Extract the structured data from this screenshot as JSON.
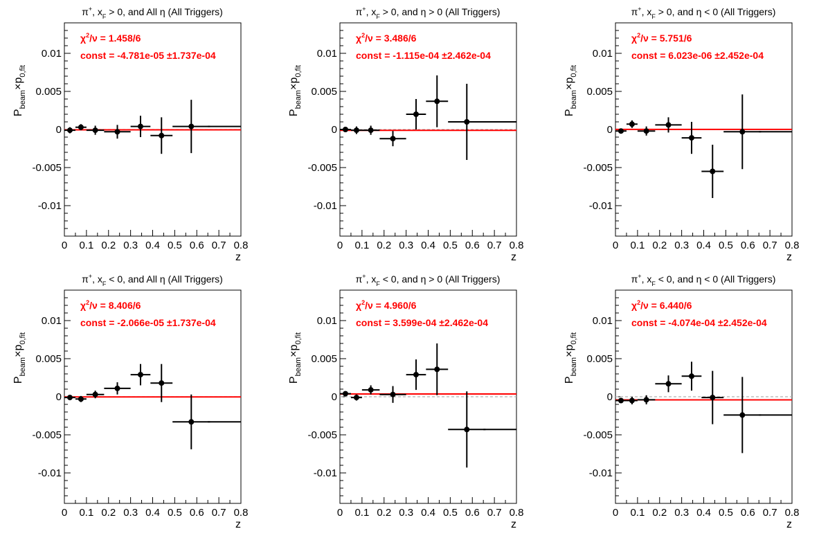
{
  "colors": {
    "fit_line": "#ff0000",
    "fit_text": "#ff0000",
    "points": "#000000",
    "zero_line": "#b0b0b0"
  },
  "chart_data": [
    {
      "type": "scatter",
      "title": "π⁺, x_F > 0, and All η (All Triggers)",
      "title_parts": [
        "π",
        "+",
        ", x",
        "F",
        " > 0, and All  η (All Triggers)"
      ],
      "xlabel": "z",
      "ylabel_parts": [
        "P",
        "beam",
        "×p",
        "0,fit"
      ],
      "xlim": [
        0,
        0.8
      ],
      "ylim": [
        -0.014,
        0.014
      ],
      "xticks": [
        "0",
        "0.1",
        "0.2",
        "0.3",
        "0.4",
        "0.5",
        "0.6",
        "0.7",
        "0.8"
      ],
      "yticks": [
        "0.01",
        "0.005",
        "0",
        "-0.005",
        "-0.01"
      ],
      "chi2": "1.458/6",
      "const": "-4.781e-05",
      "const_err": "±1.737e-04",
      "fit_const": -4.781e-05,
      "points": [
        {
          "x": 0.025,
          "xerr": 0.025,
          "y": -0.0001,
          "yerr": 0.0004
        },
        {
          "x": 0.075,
          "xerr": 0.025,
          "y": 0.0003,
          "yerr": 0.0004
        },
        {
          "x": 0.14,
          "xerr": 0.04,
          "y": -0.0001,
          "yerr": 0.0006
        },
        {
          "x": 0.24,
          "xerr": 0.06,
          "y": -0.0003,
          "yerr": 0.0009
        },
        {
          "x": 0.345,
          "xerr": 0.045,
          "y": 0.0004,
          "yerr": 0.0014
        },
        {
          "x": 0.44,
          "xerr": 0.05,
          "y": -0.0008,
          "yerr": 0.0024
        },
        {
          "x": 0.575,
          "xerr": 0.085,
          "y": 0.0004,
          "yerr": 0.0035
        },
        {
          "x": 0.725,
          "xerr": 0.075,
          "y": 0.0004,
          "yerr": 0.0
        }
      ]
    },
    {
      "type": "scatter",
      "title": "π⁺, x_F > 0, and η > 0 (All Triggers)",
      "title_parts": [
        "π",
        "+",
        ", x",
        "F",
        " > 0, and η > 0 (All Triggers)"
      ],
      "xlabel": "z",
      "ylabel_parts": [
        "P",
        "beam",
        "×p",
        "0,fit"
      ],
      "xlim": [
        0,
        0.8
      ],
      "ylim": [
        -0.014,
        0.014
      ],
      "xticks": [
        "0",
        "0.1",
        "0.2",
        "0.3",
        "0.4",
        "0.5",
        "0.6",
        "0.7",
        "0.8"
      ],
      "yticks": [
        "0.01",
        "0.005",
        "0",
        "-0.005",
        "-0.01"
      ],
      "chi2": "3.486/6",
      "const": "-1.115e-04",
      "const_err": "±2.462e-04",
      "fit_const": -0.0001115,
      "points": [
        {
          "x": 0.025,
          "xerr": 0.025,
          "y": 0.0,
          "yerr": 0.0003
        },
        {
          "x": 0.075,
          "xerr": 0.025,
          "y": -0.0001,
          "yerr": 0.0005
        },
        {
          "x": 0.14,
          "xerr": 0.04,
          "y": -0.0001,
          "yerr": 0.0006
        },
        {
          "x": 0.24,
          "xerr": 0.06,
          "y": -0.0012,
          "yerr": 0.001
        },
        {
          "x": 0.345,
          "xerr": 0.045,
          "y": 0.002,
          "yerr": 0.002
        },
        {
          "x": 0.44,
          "xerr": 0.05,
          "y": 0.0037,
          "yerr": 0.0034
        },
        {
          "x": 0.575,
          "xerr": 0.085,
          "y": 0.001,
          "yerr": 0.005
        },
        {
          "x": 0.725,
          "xerr": 0.075,
          "y": 0.001,
          "yerr": 0.0
        }
      ]
    },
    {
      "type": "scatter",
      "title": "π⁺, x_F > 0, and η < 0 (All Triggers)",
      "title_parts": [
        "π",
        "+",
        ", x",
        "F",
        " > 0, and η < 0 (All Triggers)"
      ],
      "xlabel": "z",
      "ylabel_parts": [
        "P",
        "beam",
        "×p",
        "0,fit"
      ],
      "xlim": [
        0,
        0.8
      ],
      "ylim": [
        -0.014,
        0.014
      ],
      "xticks": [
        "0",
        "0.1",
        "0.2",
        "0.3",
        "0.4",
        "0.5",
        "0.6",
        "0.7",
        "0.8"
      ],
      "yticks": [
        "0.01",
        "0.005",
        "0",
        "-0.005",
        "-0.01"
      ],
      "chi2": "5.751/6",
      "const": "6.023e-06",
      "const_err": "±2.452e-04",
      "fit_const": 6.023e-06,
      "points": [
        {
          "x": 0.025,
          "xerr": 0.025,
          "y": -0.0002,
          "yerr": 0.0003
        },
        {
          "x": 0.075,
          "xerr": 0.025,
          "y": 0.0007,
          "yerr": 0.0005
        },
        {
          "x": 0.14,
          "xerr": 0.04,
          "y": -0.0002,
          "yerr": 0.0006
        },
        {
          "x": 0.24,
          "xerr": 0.06,
          "y": 0.0006,
          "yerr": 0.001
        },
        {
          "x": 0.345,
          "xerr": 0.045,
          "y": -0.0011,
          "yerr": 0.0021
        },
        {
          "x": 0.44,
          "xerr": 0.05,
          "y": -0.0055,
          "yerr": 0.0035
        },
        {
          "x": 0.575,
          "xerr": 0.085,
          "y": -0.0003,
          "yerr": 0.0049
        },
        {
          "x": 0.725,
          "xerr": 0.075,
          "y": -0.0003,
          "yerr": 0.0
        }
      ]
    },
    {
      "type": "scatter",
      "title": "π⁺, x_F < 0, and All η (All Triggers)",
      "title_parts": [
        "π",
        "+",
        ", x",
        "F",
        " < 0, and All  η (All Triggers)"
      ],
      "xlabel": "z",
      "ylabel_parts": [
        "P",
        "beam",
        "×p",
        "0,fit"
      ],
      "xlim": [
        0,
        0.8
      ],
      "ylim": [
        -0.014,
        0.014
      ],
      "xticks": [
        "0",
        "0.1",
        "0.2",
        "0.3",
        "0.4",
        "0.5",
        "0.6",
        "0.7",
        "0.8"
      ],
      "yticks": [
        "0.01",
        "0.005",
        "0",
        "-0.005",
        "-0.01"
      ],
      "chi2": "8.406/6",
      "const": "-2.066e-05",
      "const_err": "±1.737e-04",
      "fit_const": -2.066e-05,
      "points": [
        {
          "x": 0.025,
          "xerr": 0.025,
          "y": -0.0001,
          "yerr": 0.0003
        },
        {
          "x": 0.075,
          "xerr": 0.025,
          "y": -0.0003,
          "yerr": 0.0004
        },
        {
          "x": 0.14,
          "xerr": 0.04,
          "y": 0.0003,
          "yerr": 0.0005
        },
        {
          "x": 0.24,
          "xerr": 0.06,
          "y": 0.0011,
          "yerr": 0.0008
        },
        {
          "x": 0.345,
          "xerr": 0.045,
          "y": 0.0029,
          "yerr": 0.0014
        },
        {
          "x": 0.44,
          "xerr": 0.05,
          "y": 0.0018,
          "yerr": 0.0025
        },
        {
          "x": 0.575,
          "xerr": 0.085,
          "y": -0.0033,
          "yerr": 0.0036
        },
        {
          "x": 0.725,
          "xerr": 0.075,
          "y": -0.0033,
          "yerr": 0.0
        }
      ]
    },
    {
      "type": "scatter",
      "title": "π⁺, x_F < 0, and η > 0 (All Triggers)",
      "title_parts": [
        "π",
        "+",
        ", x",
        "F",
        " < 0, and η > 0 (All Triggers)"
      ],
      "xlabel": "z",
      "ylabel_parts": [
        "P",
        "beam",
        "×p",
        "0,fit"
      ],
      "xlim": [
        0,
        0.8
      ],
      "ylim": [
        -0.014,
        0.014
      ],
      "xticks": [
        "0",
        "0.1",
        "0.2",
        "0.3",
        "0.4",
        "0.5",
        "0.6",
        "0.7",
        "0.8"
      ],
      "yticks": [
        "0.01",
        "0.005",
        "0",
        "-0.005",
        "-0.01"
      ],
      "chi2": "4.960/6",
      "const": "3.599e-04",
      "const_err": "±2.462e-04",
      "fit_const": 0.0003599,
      "points": [
        {
          "x": 0.025,
          "xerr": 0.025,
          "y": 0.0004,
          "yerr": 0.0003
        },
        {
          "x": 0.075,
          "xerr": 0.025,
          "y": -0.0001,
          "yerr": 0.0004
        },
        {
          "x": 0.14,
          "xerr": 0.04,
          "y": 0.0009,
          "yerr": 0.0006
        },
        {
          "x": 0.24,
          "xerr": 0.06,
          "y": 0.0003,
          "yerr": 0.0011
        },
        {
          "x": 0.345,
          "xerr": 0.045,
          "y": 0.0029,
          "yerr": 0.002
        },
        {
          "x": 0.44,
          "xerr": 0.05,
          "y": 0.0036,
          "yerr": 0.0034
        },
        {
          "x": 0.575,
          "xerr": 0.085,
          "y": -0.0043,
          "yerr": 0.005
        },
        {
          "x": 0.725,
          "xerr": 0.075,
          "y": -0.0043,
          "yerr": 0.0
        }
      ]
    },
    {
      "type": "scatter",
      "title": "π⁺, x_F < 0, and η < 0 (All Triggers)",
      "title_parts": [
        "π",
        "+",
        ", x",
        "F",
        " < 0, and η < 0 (All Triggers)"
      ],
      "xlabel": "z",
      "ylabel_parts": [
        "P",
        "beam",
        "×p",
        "0,fit"
      ],
      "xlim": [
        0,
        0.8
      ],
      "ylim": [
        -0.014,
        0.014
      ],
      "xticks": [
        "0",
        "0.1",
        "0.2",
        "0.3",
        "0.4",
        "0.5",
        "0.6",
        "0.7",
        "0.8"
      ],
      "yticks": [
        "0.01",
        "0.005",
        "0",
        "-0.005",
        "-0.01"
      ],
      "chi2": "6.440/6",
      "const": "-4.074e-04",
      "const_err": "±2.452e-04",
      "fit_const": -0.0004074,
      "points": [
        {
          "x": 0.025,
          "xerr": 0.025,
          "y": -0.0005,
          "yerr": 0.0003
        },
        {
          "x": 0.075,
          "xerr": 0.025,
          "y": -0.0005,
          "yerr": 0.0005
        },
        {
          "x": 0.14,
          "xerr": 0.04,
          "y": -0.0004,
          "yerr": 0.0006
        },
        {
          "x": 0.24,
          "xerr": 0.06,
          "y": 0.0017,
          "yerr": 0.0011
        },
        {
          "x": 0.345,
          "xerr": 0.045,
          "y": 0.0027,
          "yerr": 0.0019
        },
        {
          "x": 0.44,
          "xerr": 0.05,
          "y": -0.0001,
          "yerr": 0.0035
        },
        {
          "x": 0.575,
          "xerr": 0.085,
          "y": -0.0024,
          "yerr": 0.005
        },
        {
          "x": 0.725,
          "xerr": 0.075,
          "y": -0.0024,
          "yerr": 0.0
        }
      ]
    }
  ]
}
